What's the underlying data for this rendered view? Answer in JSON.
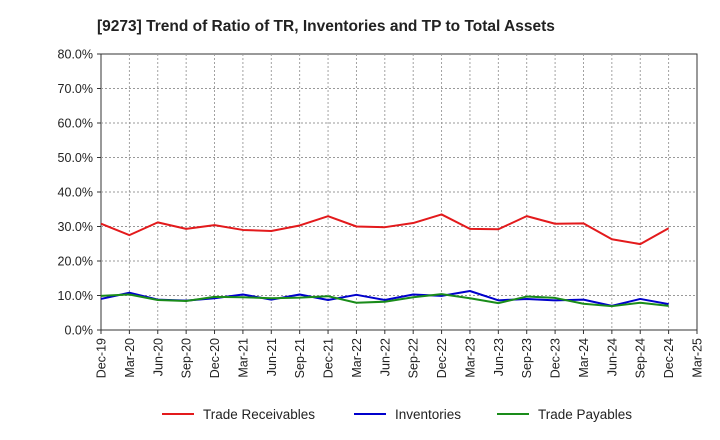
{
  "chart_data": {
    "type": "line",
    "title": "[9273]  Trend of Ratio of TR, Inventories and TP to Total Assets",
    "xlabel": "",
    "ylabel": "",
    "ylim": [
      0,
      80
    ],
    "y_ticks": [
      "0.0%",
      "10.0%",
      "20.0%",
      "30.0%",
      "40.0%",
      "50.0%",
      "60.0%",
      "70.0%",
      "80.0%"
    ],
    "x": [
      "Dec-19",
      "Mar-20",
      "Jun-20",
      "Sep-20",
      "Dec-20",
      "Mar-21",
      "Jun-21",
      "Sep-21",
      "Dec-21",
      "Mar-22",
      "Jun-22",
      "Sep-22",
      "Dec-22",
      "Mar-23",
      "Jun-23",
      "Sep-23",
      "Dec-23",
      "Mar-24",
      "Jun-24",
      "Sep-24",
      "Dec-24",
      "Mar-25"
    ],
    "grid": true,
    "legend_position": "bottom",
    "series": [
      {
        "name": "Trade Receivables",
        "color": "#e31a1c",
        "values": [
          30.8,
          27.5,
          31.2,
          29.3,
          30.4,
          29.0,
          28.7,
          30.3,
          33.0,
          30.0,
          29.8,
          31.0,
          33.5,
          29.3,
          29.2,
          33.0,
          30.8,
          30.9,
          26.3,
          24.9,
          29.5,
          null
        ]
      },
      {
        "name": "Inventories",
        "color": "#0000cc",
        "values": [
          9.0,
          10.8,
          8.8,
          8.5,
          9.2,
          10.3,
          8.8,
          10.3,
          8.7,
          10.2,
          8.7,
          10.3,
          9.9,
          11.3,
          8.6,
          9.0,
          8.6,
          8.8,
          7.0,
          9.0,
          7.5,
          null
        ]
      },
      {
        "name": "Trade Payables",
        "color": "#1a8c1a",
        "values": [
          9.9,
          10.3,
          8.7,
          8.4,
          9.6,
          9.5,
          9.2,
          9.4,
          9.8,
          7.9,
          8.2,
          9.5,
          10.4,
          9.2,
          7.8,
          9.7,
          9.3,
          7.6,
          6.9,
          7.9,
          7.0,
          null
        ]
      }
    ]
  }
}
